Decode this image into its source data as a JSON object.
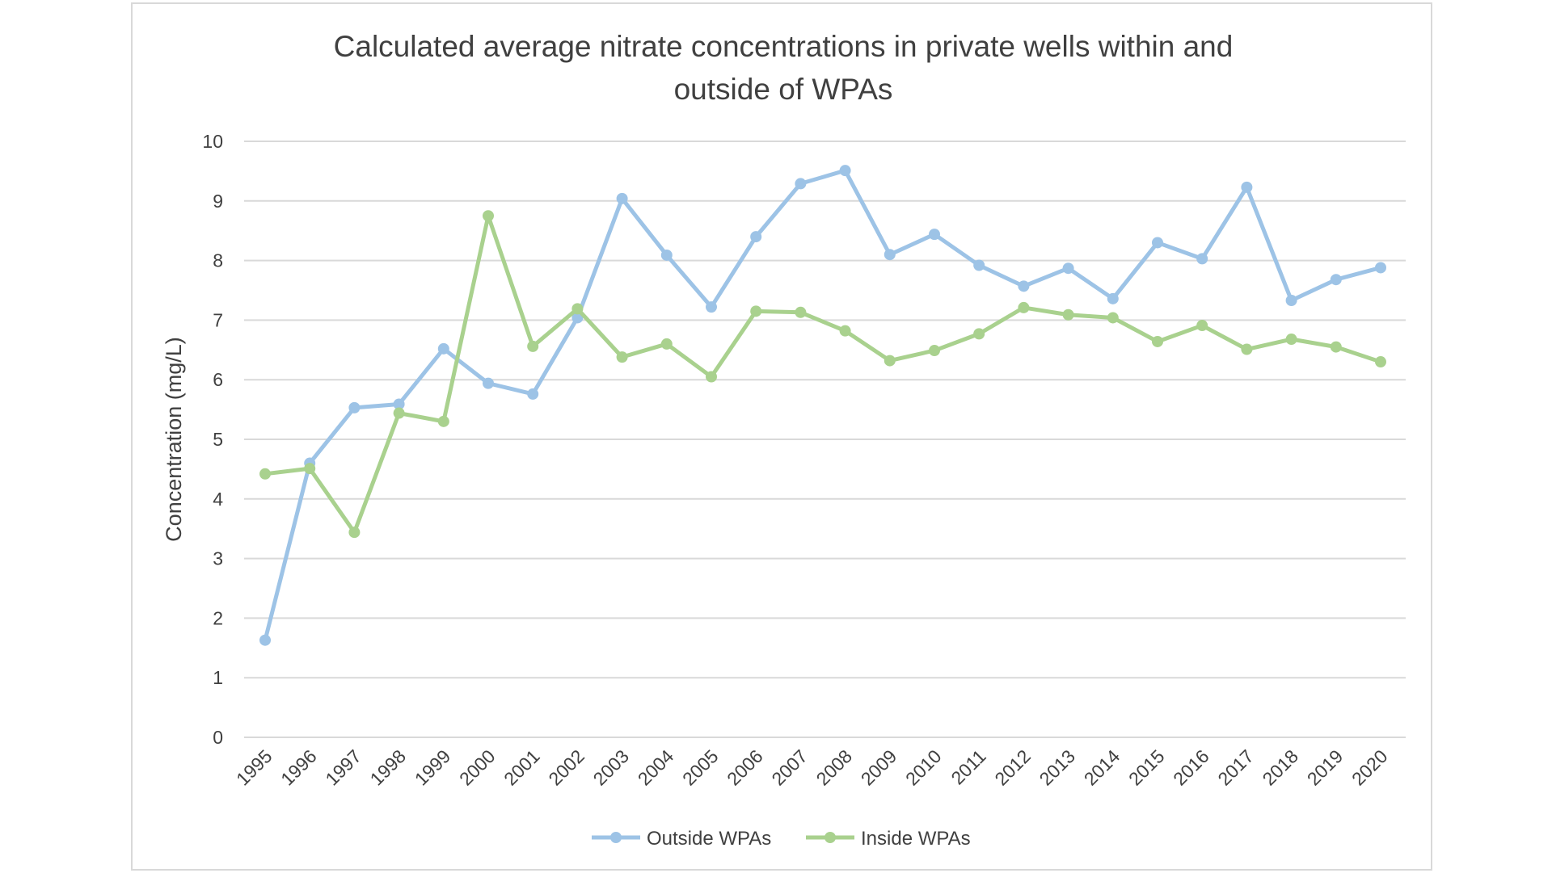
{
  "chart_data": {
    "type": "line",
    "title_line1": "Calculated average nitrate concentrations in private wells within and",
    "title_line2": "outside of WPAs",
    "xlabel": "",
    "ylabel": "Concentration (mg/L)",
    "ylim": [
      0,
      10
    ],
    "yticks": [
      "0",
      "1",
      "2",
      "3",
      "4",
      "5",
      "6",
      "7",
      "8",
      "9",
      "10"
    ],
    "grid": true,
    "legend_position": "bottom",
    "categories": [
      "1995",
      "1996",
      "1997",
      "1998",
      "1999",
      "2000",
      "2001",
      "2002",
      "2003",
      "2004",
      "2005",
      "2006",
      "2007",
      "2008",
      "2009",
      "2010",
      "2011",
      "2012",
      "2013",
      "2014",
      "2015",
      "2016",
      "2017",
      "2018",
      "2019",
      "2020"
    ],
    "series": [
      {
        "name": "Outside WPAs",
        "color": "#9dc3e6",
        "values": [
          1.63,
          4.6,
          5.53,
          5.59,
          6.52,
          5.94,
          5.76,
          7.04,
          9.04,
          8.09,
          7.22,
          8.4,
          9.29,
          9.51,
          8.1,
          8.44,
          7.92,
          7.57,
          7.87,
          7.36,
          8.3,
          8.03,
          9.23,
          7.33,
          7.68,
          7.88
        ]
      },
      {
        "name": "Inside WPAs",
        "color": "#a9d18e",
        "values": [
          4.42,
          4.51,
          3.44,
          5.44,
          5.3,
          8.75,
          6.56,
          7.19,
          6.38,
          6.6,
          6.05,
          7.15,
          7.13,
          6.82,
          6.32,
          6.49,
          6.77,
          7.21,
          7.09,
          7.04,
          6.64,
          6.91,
          6.51,
          6.68,
          6.55,
          6.3
        ]
      }
    ]
  }
}
